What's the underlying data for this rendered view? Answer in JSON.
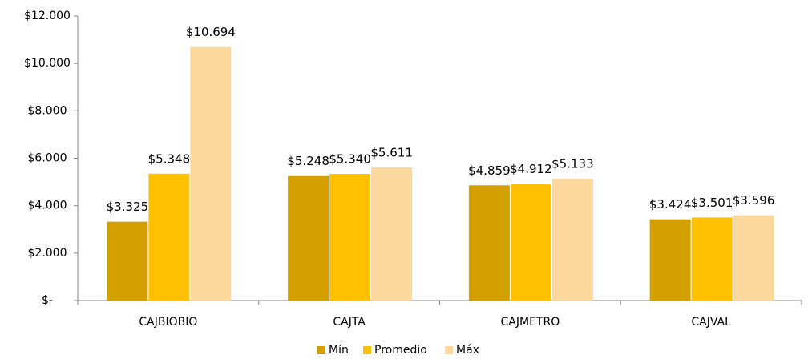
{
  "chart_data": {
    "type": "bar",
    "categories": [
      "CAJBIOBIO",
      "CAJTA",
      "CAJMETRO",
      "CAJVAL"
    ],
    "series": [
      {
        "name": "Mín",
        "color": "#d4a000",
        "values": [
          3325,
          5248,
          4859,
          3424
        ],
        "value_labels": [
          "$3.325",
          "$5.248",
          "$4.859",
          "$3.424"
        ]
      },
      {
        "name": "Promedio",
        "color": "#ffc000",
        "values": [
          5348,
          5340,
          4912,
          3501
        ],
        "value_labels": [
          "$5.348",
          "$5.340",
          "$4.912",
          "$3.501"
        ]
      },
      {
        "name": "Máx",
        "color": "#fdd89c",
        "values": [
          10694,
          5611,
          5133,
          3596
        ],
        "value_labels": [
          "$10.694",
          "$5.611",
          "$5.133",
          "$3.596"
        ]
      }
    ],
    "ylim": [
      0,
      12000
    ],
    "yticks": [
      {
        "value": 0,
        "label": "$-"
      },
      {
        "value": 2000,
        "label": "$2.000"
      },
      {
        "value": 4000,
        "label": "$4.000"
      },
      {
        "value": 6000,
        "label": "$6.000"
      },
      {
        "value": 8000,
        "label": "$8.000"
      },
      {
        "value": 10000,
        "label": "$10.000"
      },
      {
        "value": 12000,
        "label": "$12.000"
      }
    ],
    "legend": "bottom"
  }
}
